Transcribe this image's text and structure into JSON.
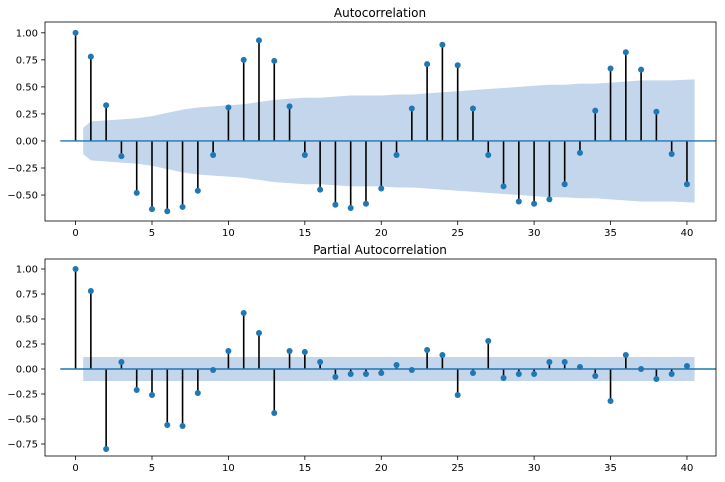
{
  "chart_data": [
    {
      "type": "stem",
      "title": "Autocorrelation",
      "xlim": [
        -2,
        41.9
      ],
      "ylim": [
        -0.74,
        1.1
      ],
      "xticks": [
        0,
        5,
        10,
        15,
        20,
        25,
        30,
        35,
        40
      ],
      "yticks": [
        -0.5,
        -0.25,
        0.0,
        0.25,
        0.5,
        0.75,
        1.0
      ],
      "ytick_labels": [
        "−0.50",
        "−0.25",
        "0.00",
        "0.25",
        "0.50",
        "0.75",
        "1.00"
      ],
      "x": [
        0,
        1,
        2,
        3,
        4,
        5,
        6,
        7,
        8,
        9,
        10,
        11,
        12,
        13,
        14,
        15,
        16,
        17,
        18,
        19,
        20,
        21,
        22,
        23,
        24,
        25,
        26,
        27,
        28,
        29,
        30,
        31,
        32,
        33,
        34,
        35,
        36,
        37,
        38,
        39,
        40
      ],
      "values": [
        1.0,
        0.78,
        0.33,
        -0.14,
        -0.48,
        -0.63,
        -0.65,
        -0.61,
        -0.46,
        -0.13,
        0.31,
        0.75,
        0.93,
        0.74,
        0.32,
        -0.13,
        -0.45,
        -0.59,
        -0.62,
        -0.58,
        -0.44,
        -0.13,
        0.3,
        0.71,
        0.89,
        0.7,
        0.3,
        -0.13,
        -0.42,
        -0.56,
        -0.58,
        -0.54,
        -0.4,
        -0.11,
        0.28,
        0.67,
        0.82,
        0.66,
        0.27,
        -0.12,
        -0.4
      ],
      "confidence_band": {
        "x": [
          0.5,
          1,
          2,
          3,
          4,
          5,
          6,
          7,
          8,
          9,
          10,
          11,
          12,
          13,
          14,
          15,
          16,
          17,
          18,
          19,
          20,
          21,
          22,
          23,
          24,
          25,
          26,
          27,
          28,
          29,
          30,
          31,
          32,
          33,
          34,
          35,
          36,
          37,
          38,
          39,
          40.5
        ],
        "upper": [
          0.12,
          0.18,
          0.19,
          0.2,
          0.21,
          0.23,
          0.26,
          0.29,
          0.31,
          0.32,
          0.33,
          0.34,
          0.36,
          0.38,
          0.39,
          0.4,
          0.4,
          0.41,
          0.42,
          0.42,
          0.42,
          0.43,
          0.43,
          0.44,
          0.45,
          0.46,
          0.47,
          0.48,
          0.49,
          0.5,
          0.51,
          0.52,
          0.52,
          0.53,
          0.53,
          0.54,
          0.55,
          0.56,
          0.56,
          0.56,
          0.57
        ]
      },
      "colors": {
        "marker": "#1f77b4",
        "stem": "#000000",
        "band": "#c3d6eb",
        "baseline": "#1f77b4"
      }
    },
    {
      "type": "stem",
      "title": "Partial Autocorrelation",
      "xlim": [
        -2,
        41.9
      ],
      "ylim": [
        -0.87,
        1.1
      ],
      "xticks": [
        0,
        5,
        10,
        15,
        20,
        25,
        30,
        35,
        40
      ],
      "yticks": [
        -0.75,
        -0.5,
        -0.25,
        0.0,
        0.25,
        0.5,
        0.75,
        1.0
      ],
      "ytick_labels": [
        "−0.75",
        "−0.50",
        "−0.25",
        "0.00",
        "0.25",
        "0.50",
        "0.75",
        "1.00"
      ],
      "x": [
        0,
        1,
        2,
        3,
        4,
        5,
        6,
        7,
        8,
        9,
        10,
        11,
        12,
        13,
        14,
        15,
        16,
        17,
        18,
        19,
        20,
        21,
        22,
        23,
        24,
        25,
        26,
        27,
        28,
        29,
        30,
        31,
        32,
        33,
        34,
        35,
        36,
        37,
        38,
        39,
        40
      ],
      "values": [
        1.0,
        0.78,
        -0.8,
        0.07,
        -0.21,
        -0.26,
        -0.56,
        -0.57,
        -0.24,
        -0.01,
        0.18,
        0.56,
        0.36,
        -0.44,
        0.18,
        0.17,
        0.07,
        -0.08,
        -0.05,
        -0.05,
        -0.04,
        0.04,
        -0.01,
        0.19,
        0.14,
        -0.26,
        -0.04,
        0.28,
        -0.09,
        -0.05,
        -0.05,
        0.07,
        0.07,
        0.02,
        -0.07,
        -0.32,
        0.14,
        0.0,
        -0.1,
        -0.05,
        0.03
      ],
      "confidence_band": {
        "x": [
          0.5,
          40.5
        ],
        "upper": [
          0.12,
          0.12
        ]
      },
      "colors": {
        "marker": "#1f77b4",
        "stem": "#000000",
        "band": "#c3d6eb",
        "baseline": "#1f77b4"
      }
    }
  ]
}
